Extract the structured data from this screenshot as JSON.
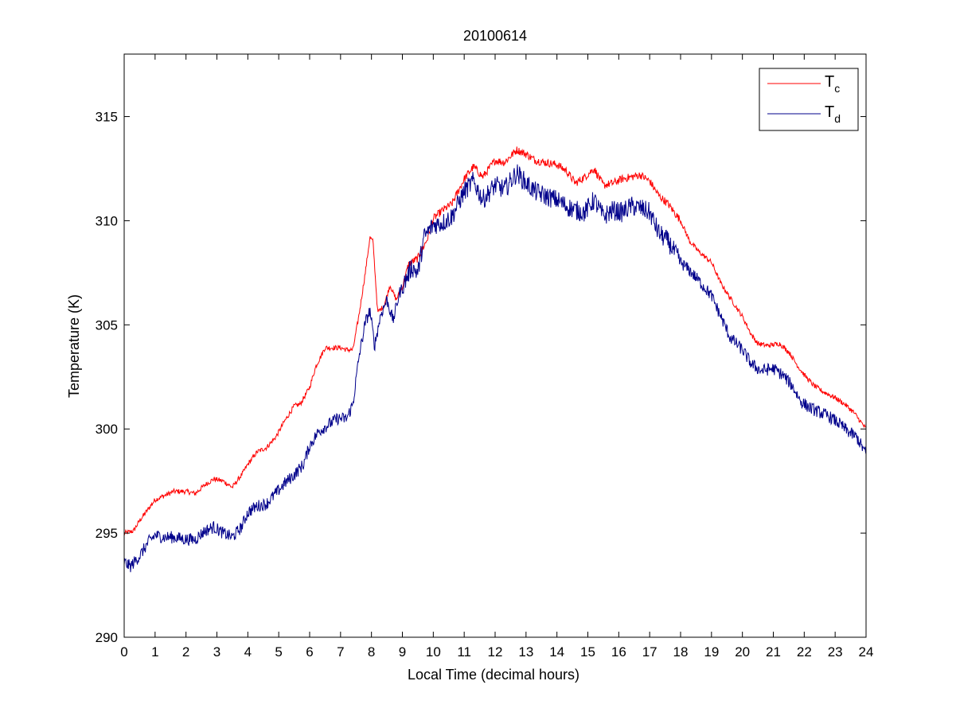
{
  "chart_data": {
    "type": "line",
    "title": "20100614",
    "xlabel": "Local Time (decimal hours)",
    "ylabel": "Temperature (K)",
    "xlim": [
      0,
      24
    ],
    "ylim": [
      290,
      318
    ],
    "xticks": [
      0,
      1,
      2,
      3,
      4,
      5,
      6,
      7,
      8,
      9,
      10,
      11,
      12,
      13,
      14,
      15,
      16,
      17,
      18,
      19,
      20,
      21,
      22,
      23,
      24
    ],
    "yticks": [
      290,
      295,
      300,
      305,
      310,
      315
    ],
    "grid": false,
    "legend_position": "top-right",
    "series": [
      {
        "name": "T",
        "name_subscript": "c",
        "color": "#ff0000",
        "x": [
          0,
          0.3,
          0.5,
          0.8,
          1.0,
          1.3,
          1.6,
          2.0,
          2.3,
          2.6,
          2.9,
          3.2,
          3.5,
          3.8,
          4.0,
          4.3,
          4.6,
          4.9,
          5.2,
          5.5,
          5.7,
          6.0,
          6.2,
          6.5,
          6.8,
          7.0,
          7.2,
          7.4,
          7.6,
          7.8,
          7.95,
          8.05,
          8.2,
          8.4,
          8.6,
          8.8,
          9.0,
          9.2,
          9.5,
          9.8,
          10.0,
          10.3,
          10.6,
          11.0,
          11.3,
          11.6,
          12.0,
          12.3,
          12.7,
          13.0,
          13.3,
          13.6,
          14.0,
          14.3,
          14.6,
          14.9,
          15.2,
          15.5,
          15.8,
          16.1,
          16.4,
          16.7,
          17.0,
          17.3,
          17.6,
          18.0,
          18.3,
          18.6,
          19.0,
          19.3,
          19.6,
          20.0,
          20.3,
          20.5,
          20.8,
          21.2,
          21.5,
          21.8,
          22.0,
          22.3,
          22.6,
          23.0,
          23.3,
          23.6,
          24.0
        ],
        "y": [
          295.0,
          295.1,
          295.6,
          296.2,
          296.6,
          296.8,
          297.0,
          297.0,
          296.9,
          297.3,
          297.6,
          297.5,
          297.2,
          297.8,
          298.3,
          298.9,
          299.1,
          299.6,
          300.4,
          301.1,
          301.2,
          302.0,
          303.0,
          303.9,
          303.9,
          303.9,
          303.8,
          303.8,
          305.5,
          307.5,
          309.2,
          309.0,
          305.6,
          305.9,
          306.9,
          306.2,
          306.8,
          307.9,
          308.2,
          309.1,
          310.1,
          310.5,
          310.8,
          312.0,
          312.6,
          312.1,
          312.9,
          312.8,
          313.4,
          313.2,
          312.9,
          312.8,
          312.7,
          312.4,
          311.8,
          312.1,
          312.5,
          311.7,
          311.8,
          312.0,
          312.1,
          312.2,
          311.9,
          311.2,
          310.8,
          310.0,
          309.0,
          308.5,
          308.0,
          307.0,
          306.3,
          305.4,
          304.5,
          304.1,
          304.0,
          304.1,
          303.7,
          303.0,
          302.6,
          302.1,
          301.8,
          301.5,
          301.2,
          300.8,
          300.0
        ],
        "noise": 0.12
      },
      {
        "name": "T",
        "name_subscript": "d",
        "color": "#00008b",
        "x": [
          0,
          0.2,
          0.5,
          0.8,
          1.0,
          1.3,
          1.6,
          2.0,
          2.3,
          2.6,
          2.9,
          3.2,
          3.5,
          3.8,
          4.0,
          4.3,
          4.6,
          4.9,
          5.2,
          5.5,
          5.8,
          6.0,
          6.3,
          6.6,
          6.9,
          7.2,
          7.4,
          7.6,
          7.8,
          7.95,
          8.1,
          8.3,
          8.5,
          8.7,
          8.9,
          9.0,
          9.3,
          9.5,
          9.7,
          10.0,
          10.3,
          10.6,
          11.0,
          11.3,
          11.6,
          12.0,
          12.3,
          12.7,
          13.0,
          13.3,
          13.6,
          14.0,
          14.3,
          14.6,
          14.9,
          15.2,
          15.5,
          15.8,
          16.1,
          16.4,
          16.7,
          17.0,
          17.3,
          17.6,
          18.0,
          18.3,
          18.6,
          19.0,
          19.3,
          19.6,
          20.0,
          20.3,
          20.6,
          21.0,
          21.3,
          21.6,
          21.9,
          22.2,
          22.5,
          22.8,
          23.1,
          23.4,
          23.7,
          24.0
        ],
        "y": [
          293.6,
          293.4,
          293.9,
          294.6,
          294.9,
          294.8,
          294.8,
          294.7,
          294.7,
          295.1,
          295.3,
          295.0,
          294.8,
          295.3,
          296.0,
          296.3,
          296.4,
          296.9,
          297.4,
          297.8,
          298.3,
          299.2,
          299.9,
          300.2,
          300.5,
          300.5,
          301.2,
          303.5,
          305.1,
          305.7,
          304.0,
          305.5,
          306.2,
          305.2,
          306.5,
          306.8,
          307.8,
          307.5,
          309.2,
          309.8,
          309.9,
          310.2,
          311.4,
          311.9,
          311.0,
          311.7,
          311.5,
          312.3,
          311.8,
          311.4,
          311.2,
          311.0,
          310.7,
          310.5,
          310.4,
          311.0,
          310.2,
          310.5,
          310.4,
          310.7,
          310.6,
          310.4,
          309.4,
          309.0,
          308.0,
          307.6,
          307.1,
          306.4,
          305.4,
          304.4,
          303.8,
          303.1,
          302.8,
          302.9,
          302.6,
          302.1,
          301.3,
          301.0,
          300.8,
          300.6,
          300.3,
          299.9,
          299.6,
          298.8
        ],
        "noise": 0.3
      }
    ]
  }
}
